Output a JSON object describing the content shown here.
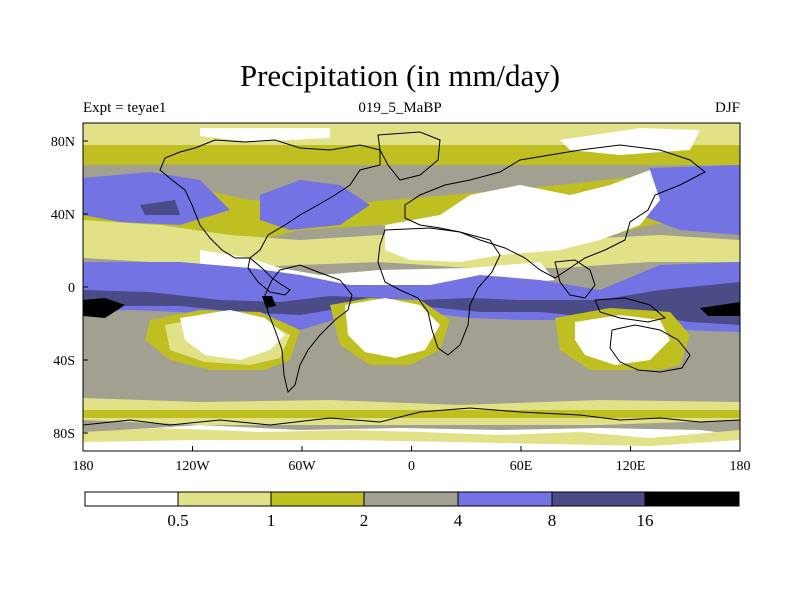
{
  "title": "Precipitation (in mm/day)",
  "experiment_label": "Expt = teyae1",
  "run_label": "019_5_MaBP",
  "season_label": "DJF",
  "map": {
    "lon_ticks": [
      "180",
      "120W",
      "60W",
      "0",
      "60E",
      "120E",
      "180"
    ],
    "lat_ticks": [
      "80N",
      "40N",
      "0",
      "40S",
      "80S"
    ]
  },
  "colorbar": {
    "labels": [
      "0.5",
      "1",
      "2",
      "4",
      "8",
      "16"
    ],
    "colors": [
      "#ffffff",
      "#e1e187",
      "#bfbf22",
      "#a2a090",
      "#7373e3",
      "#4b4b88",
      "#000000"
    ]
  },
  "colors": {
    "white": "#ffffff",
    "pale_yellow": "#e1e187",
    "olive": "#bfbf22",
    "gray": "#a2a090",
    "blue": "#7373e3",
    "navy": "#4b4b88",
    "black": "#000000"
  }
}
